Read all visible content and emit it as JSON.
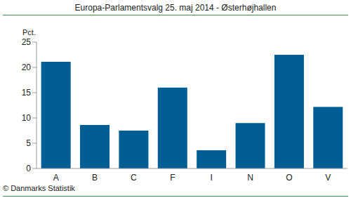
{
  "chart_data": {
    "type": "bar",
    "title": "Europa-Parlamentsvalg 25. maj 2014 - Østerhøjhallen",
    "ylabel": "Pct.",
    "annotation": "© Danmarks Statistik",
    "categories": [
      "A",
      "B",
      "C",
      "F",
      "I",
      "N",
      "O",
      "V"
    ],
    "values": [
      21.1,
      8.6,
      7.5,
      16.0,
      3.6,
      9.0,
      22.5,
      12.2
    ],
    "color": "#005e94",
    "ylim": [
      0,
      25
    ],
    "yticks": [
      0,
      5,
      10,
      15,
      20,
      25
    ],
    "grid": false
  }
}
